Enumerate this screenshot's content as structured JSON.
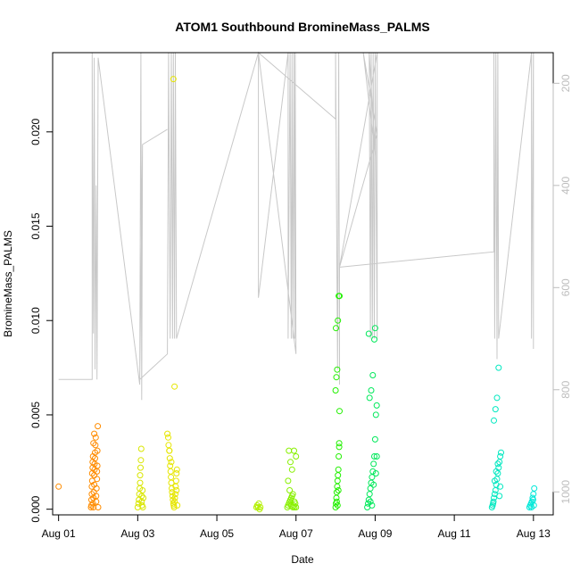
{
  "chart_data": {
    "type": "scatter",
    "title": "ATOM1 Southbound BromineMass_PALMS",
    "xlabel": "Date",
    "ylabel": "BromineMass_PALMS",
    "x_ticks": [
      "Aug 01",
      "Aug 03",
      "Aug 05",
      "Aug 07",
      "Aug 09",
      "Aug 11",
      "Aug 13"
    ],
    "x_tick_days": [
      1,
      3,
      5,
      7,
      9,
      11,
      13
    ],
    "xlim": [
      0.85,
      13.5
    ],
    "y_ticks": [
      "0.000",
      "0.005",
      "0.010",
      "0.015",
      "0.020"
    ],
    "y_tick_values": [
      0,
      0.005,
      0.01,
      0.015,
      0.02
    ],
    "ylim": [
      -0.0003,
      0.0242
    ],
    "y2_ticks": [
      "200",
      "400",
      "600",
      "800",
      "1000"
    ],
    "y2_tick_values": [
      200,
      400,
      600,
      800,
      1000
    ],
    "y2lim": [
      1045,
      140
    ],
    "y2_reversed": true,
    "grid": false,
    "colors": {
      "overlay_line": "#c8c8c8",
      "axis": "#000000",
      "y2_axis": "#bdbdbd"
    },
    "overlay_line_series": {
      "description_units": "secondary axis values (reversed)",
      "points": [
        [
          1.0,
          780
        ],
        [
          1.5,
          780
        ],
        [
          1.85,
          780
        ],
        [
          1.85,
          140
        ],
        [
          1.88,
          690
        ],
        [
          1.9,
          150
        ],
        [
          1.92,
          760
        ],
        [
          1.95,
          400
        ],
        [
          1.97,
          780
        ],
        [
          2.0,
          150
        ],
        [
          3.05,
          790
        ],
        [
          3.08,
          140
        ],
        [
          3.1,
          820
        ],
        [
          3.12,
          320
        ],
        [
          3.75,
          290
        ],
        [
          3.12,
          320
        ],
        [
          3.05,
          780
        ],
        [
          3.75,
          730
        ],
        [
          3.78,
          140
        ],
        [
          3.82,
          700
        ],
        [
          3.85,
          140
        ],
        [
          3.88,
          700
        ],
        [
          3.9,
          140
        ],
        [
          3.93,
          700
        ],
        [
          3.95,
          140
        ],
        [
          3.98,
          700
        ],
        [
          6.05,
          140
        ],
        [
          6.05,
          620
        ],
        [
          6.8,
          140
        ],
        [
          6.8,
          700
        ],
        [
          6.85,
          140
        ],
        [
          6.88,
          700
        ],
        [
          6.9,
          140
        ],
        [
          6.92,
          700
        ],
        [
          6.95,
          140
        ],
        [
          6.97,
          700
        ],
        [
          6.98,
          140
        ],
        [
          7.0,
          730
        ],
        [
          6.05,
          140
        ],
        [
          8.0,
          270
        ],
        [
          8.0,
          140
        ],
        [
          8.05,
          760
        ],
        [
          8.08,
          140
        ],
        [
          8.1,
          790
        ],
        [
          8.1,
          560
        ],
        [
          9.05,
          300
        ],
        [
          8.7,
          140
        ],
        [
          9.0,
          340
        ],
        [
          8.85,
          140
        ],
        [
          8.88,
          700
        ],
        [
          8.9,
          140
        ],
        [
          8.93,
          700
        ],
        [
          8.95,
          140
        ],
        [
          8.98,
          700
        ],
        [
          9.0,
          140
        ],
        [
          9.05,
          700
        ],
        [
          9.05,
          140
        ],
        [
          8.1,
          560
        ],
        [
          12.0,
          530
        ],
        [
          12.0,
          140
        ],
        [
          12.02,
          700
        ],
        [
          12.05,
          140
        ],
        [
          12.08,
          740
        ],
        [
          12.1,
          140
        ],
        [
          12.12,
          700
        ],
        [
          12.95,
          140
        ],
        [
          12.95,
          700
        ],
        [
          13.0,
          140
        ],
        [
          13.0,
          720
        ]
      ]
    },
    "series": [
      {
        "color": "#ff8c00",
        "x": [
          1.0,
          1.82,
          1.83,
          1.83,
          1.84,
          1.84,
          1.85,
          1.85,
          1.86,
          1.86,
          1.87,
          1.87,
          1.88,
          1.88,
          1.89,
          1.9,
          1.9,
          1.91,
          1.91,
          1.92,
          1.92,
          1.93,
          1.94,
          1.95,
          1.95,
          1.96,
          1.97,
          1.97,
          1.98,
          1.98,
          1.99,
          2.0,
          1.88,
          1.9
        ],
        "y": [
          0.0012,
          0.0001,
          0.0002,
          0.0005,
          0.0008,
          0.0012,
          0.0015,
          0.0019,
          0.0022,
          0.0025,
          0.0028,
          0.0003,
          0.0001,
          0.0006,
          0.0009,
          0.0013,
          0.0018,
          0.0021,
          0.0024,
          0.0027,
          0.003,
          0.0034,
          0.0038,
          0.0004,
          0.0007,
          0.0011,
          0.0016,
          0.002,
          0.0023,
          0.0031,
          0.0044,
          0.0001,
          0.0035,
          0.004
        ]
      },
      {
        "color": "#d9e600",
        "x": [
          3.0,
          3.02,
          3.03,
          3.04,
          3.05,
          3.06,
          3.06,
          3.07,
          3.08,
          3.09,
          3.1,
          3.1,
          3.11,
          3.12,
          3.13,
          3.14
        ],
        "y": [
          0.0001,
          0.0003,
          0.0005,
          0.0008,
          0.0011,
          0.0014,
          0.0018,
          0.0022,
          0.0026,
          0.0032,
          0.0007,
          0.0004,
          0.0002,
          0.001,
          0.0001,
          0.0006
        ]
      },
      {
        "color": "#e6e600",
        "x": [
          3.75,
          3.77,
          3.78,
          3.8,
          3.81,
          3.82,
          3.83,
          3.84,
          3.85,
          3.86,
          3.87,
          3.88,
          3.89,
          3.9,
          3.91,
          3.92,
          3.93,
          3.94,
          3.95,
          3.96,
          3.97,
          3.98,
          3.99,
          4.0,
          3.9,
          3.93,
          3.8,
          3.85,
          3.98
        ],
        "y": [
          0.004,
          0.0038,
          0.0034,
          0.0031,
          0.0027,
          0.0023,
          0.002,
          0.0017,
          0.0014,
          0.0011,
          0.0009,
          0.0007,
          0.0005,
          0.0003,
          0.0002,
          0.0001,
          0.0004,
          0.0006,
          0.0008,
          0.0012,
          0.0015,
          0.0019,
          0.0021,
          0.0002,
          0.0228,
          0.0065,
          0.0031,
          0.0025,
          0.001
        ]
      },
      {
        "color": "#b3f000",
        "x": [
          6.0,
          6.02,
          6.04,
          6.06,
          6.08,
          6.1
        ],
        "y": [
          0.0001,
          0.0002,
          0.0001,
          0.0003,
          0.0,
          0.0001
        ]
      },
      {
        "color": "#88f000",
        "x": [
          6.78,
          6.8,
          6.82,
          6.84,
          6.86,
          6.88,
          6.9,
          6.92,
          6.94,
          6.96,
          6.98,
          7.0,
          6.82,
          6.86,
          6.9,
          6.95,
          6.8,
          6.84,
          6.88,
          6.92,
          6.96,
          7.0
        ],
        "y": [
          0.0001,
          0.0002,
          0.0003,
          0.0004,
          0.0005,
          0.0006,
          0.0007,
          0.0008,
          0.0002,
          0.0001,
          0.0003,
          0.0001,
          0.0031,
          0.0025,
          0.0021,
          0.0031,
          0.0015,
          0.001,
          0.0002,
          0.0001,
          0.0004,
          0.0028
        ]
      },
      {
        "color": "#22f000",
        "x": [
          8.0,
          8.01,
          8.02,
          8.03,
          8.04,
          8.05,
          8.06,
          8.07,
          8.08,
          8.09,
          8.1,
          8.0,
          8.02,
          8.04,
          8.06,
          8.08,
          8.1,
          8.03,
          8.05,
          8.07,
          8.01,
          8.09
        ],
        "y": [
          0.0001,
          0.0003,
          0.0006,
          0.0009,
          0.0012,
          0.0015,
          0.0018,
          0.0021,
          0.0028,
          0.0035,
          0.0052,
          0.0063,
          0.007,
          0.0074,
          0.01,
          0.0113,
          0.0113,
          0.0004,
          0.0002,
          0.001,
          0.0096,
          0.0033
        ]
      },
      {
        "color": "#00e85a",
        "x": [
          8.8,
          8.82,
          8.84,
          8.86,
          8.88,
          8.9,
          8.92,
          8.94,
          8.96,
          8.98,
          9.0,
          9.02,
          9.04,
          8.86,
          8.9,
          8.94,
          8.98,
          9.0,
          8.84,
          8.88,
          8.92,
          8.96,
          9.02,
          9.04
        ],
        "y": [
          0.0001,
          0.0003,
          0.0005,
          0.0008,
          0.0011,
          0.0014,
          0.0017,
          0.002,
          0.0024,
          0.0028,
          0.0037,
          0.005,
          0.0055,
          0.0059,
          0.0063,
          0.0071,
          0.009,
          0.0096,
          0.0093,
          0.0004,
          0.0002,
          0.0013,
          0.0019,
          0.0028
        ]
      },
      {
        "color": "#00e8c0",
        "x": [
          11.95,
          11.97,
          11.99,
          12.0,
          12.02,
          12.04,
          12.06,
          12.08,
          12.1,
          12.12,
          12.14,
          12.16,
          12.18,
          12.0,
          12.04,
          12.08,
          12.12,
          12.16,
          11.98,
          12.02,
          12.06,
          12.1,
          12.14
        ],
        "y": [
          0.0001,
          0.0002,
          0.0004,
          0.0006,
          0.0008,
          0.001,
          0.0013,
          0.0016,
          0.0019,
          0.0022,
          0.0025,
          0.0028,
          0.003,
          0.0047,
          0.0053,
          0.0059,
          0.0075,
          0.0012,
          0.0003,
          0.0015,
          0.002,
          0.0024,
          0.0007
        ]
      },
      {
        "color": "#00e8d8",
        "x": [
          12.9,
          12.92,
          12.94,
          12.96,
          12.98,
          13.0,
          13.02,
          12.95,
          12.99,
          13.01
        ],
        "y": [
          0.0001,
          0.0002,
          0.0003,
          0.0004,
          0.0006,
          0.0008,
          0.0011,
          0.0001,
          0.0005,
          0.0002
        ]
      }
    ]
  }
}
